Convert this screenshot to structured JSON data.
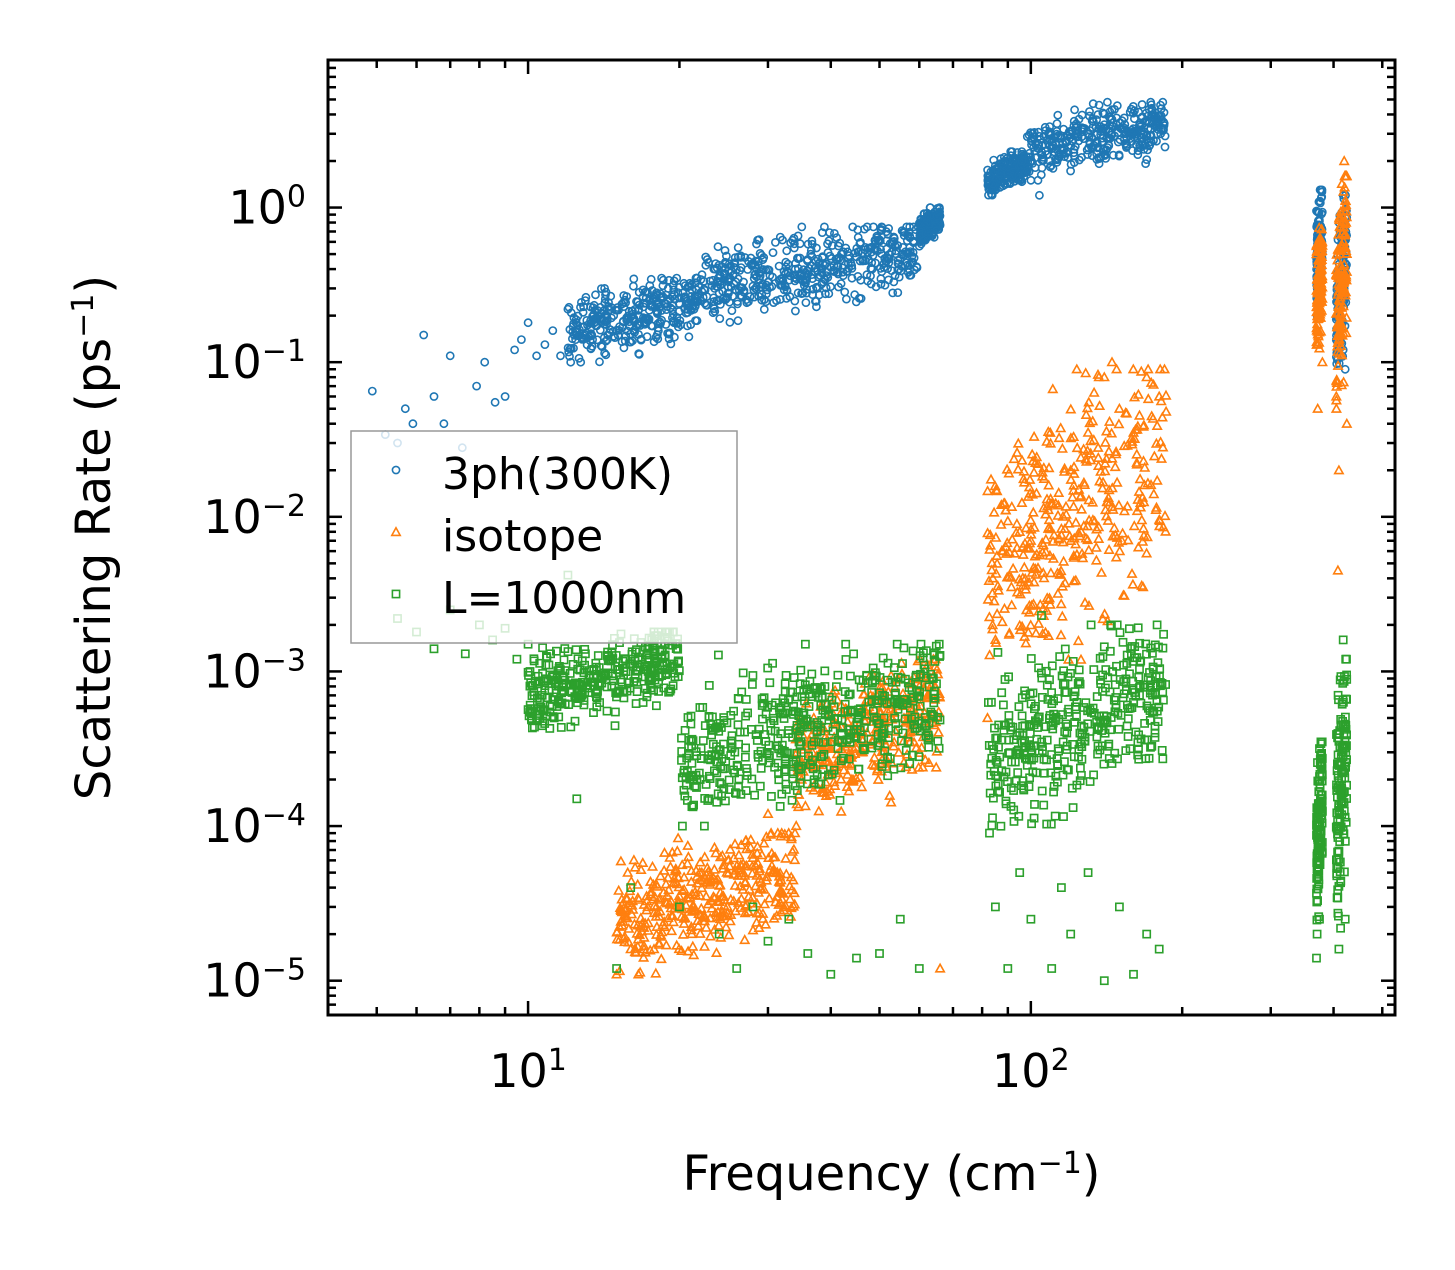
{
  "chart_data": {
    "type": "scatter",
    "title": "",
    "xlabel": "Frequency (cm",
    "xlabel_sup": "−1",
    "xlabel_end": ")",
    "ylabel": "Scattering Rate (ps",
    "ylabel_sup": "−1",
    "ylabel_end": ")",
    "xscale": "log",
    "yscale": "log",
    "xlim": [
      4.0,
      530
    ],
    "ylim": [
      6e-06,
      9.0
    ],
    "x_ticks": [
      {
        "value": 10,
        "base": "10",
        "exp": "1"
      },
      {
        "value": 100,
        "base": "10",
        "exp": "2"
      }
    ],
    "y_ticks": [
      {
        "value": 1,
        "base": "10",
        "exp": "0"
      },
      {
        "value": 0.1,
        "base": "10",
        "exp": "−1"
      },
      {
        "value": 0.01,
        "base": "10",
        "exp": "−2"
      },
      {
        "value": 0.001,
        "base": "10",
        "exp": "−3"
      },
      {
        "value": 0.0001,
        "base": "10",
        "exp": "−4"
      },
      {
        "value": 1e-05,
        "base": "10",
        "exp": "−5"
      }
    ],
    "legend_position": "center-left",
    "series": [
      {
        "name": "3ph(300K)",
        "marker": "circle",
        "color": "#1f77b4",
        "points": [
          [
            4.9,
            0.065
          ],
          [
            5.2,
            0.034
          ],
          [
            5.5,
            0.03
          ],
          [
            5.7,
            0.05
          ],
          [
            5.9,
            0.04
          ],
          [
            6.2,
            0.15
          ],
          [
            6.5,
            0.06
          ],
          [
            6.8,
            0.04
          ],
          [
            7.0,
            0.11
          ],
          [
            7.4,
            0.028
          ],
          [
            7.9,
            0.07
          ],
          [
            8.2,
            0.1
          ],
          [
            8.6,
            0.055
          ],
          [
            9.0,
            0.06
          ],
          [
            9.4,
            0.12
          ],
          [
            9.7,
            0.14
          ],
          [
            10.0,
            0.18
          ],
          [
            10.4,
            0.11
          ],
          [
            10.8,
            0.13
          ],
          [
            11.2,
            0.16
          ],
          [
            11.6,
            0.11
          ],
          [
            12.0,
            0.22
          ],
          [
            12.5,
            0.15
          ],
          [
            13.0,
            0.25
          ],
          [
            13.6,
            0.19
          ],
          [
            14.2,
            0.3
          ],
          [
            14.8,
            0.2
          ],
          [
            15.5,
            0.27
          ],
          [
            16.2,
            0.31
          ],
          [
            17.0,
            0.24
          ],
          [
            18.0,
            0.28
          ],
          [
            19.0,
            0.3
          ],
          [
            20.0,
            0.26
          ],
          [
            21.0,
            0.28
          ],
          [
            22.0,
            0.25
          ],
          [
            23.5,
            0.3
          ],
          [
            25.0,
            0.28
          ],
          [
            26.5,
            0.27
          ],
          [
            28.0,
            0.31
          ],
          [
            30.0,
            0.33
          ],
          [
            32.0,
            0.35
          ],
          [
            34.0,
            0.4
          ],
          [
            36.0,
            0.37
          ],
          [
            38.0,
            0.44
          ],
          [
            40.0,
            0.41
          ],
          [
            42.0,
            0.5
          ],
          [
            45.0,
            0.48
          ],
          [
            48.0,
            0.55
          ],
          [
            50.0,
            0.62
          ],
          [
            53.0,
            0.58
          ],
          [
            56.0,
            0.66
          ],
          [
            59.0,
            0.72
          ],
          [
            62.0,
            0.8
          ],
          [
            65.0,
            0.88
          ],
          [
            85.0,
            1.7
          ],
          [
            88.0,
            1.9
          ],
          [
            92.0,
            1.6
          ],
          [
            96.0,
            2.0
          ],
          [
            100.0,
            1.5
          ],
          [
            104.0,
            1.2
          ],
          [
            108.0,
            2.2
          ],
          [
            112.0,
            2.6
          ],
          [
            118.0,
            2.9
          ],
          [
            124.0,
            3.1
          ],
          [
            130.0,
            3.0
          ],
          [
            136.0,
            4.0
          ],
          [
            142.0,
            4.8
          ],
          [
            148.0,
            3.8
          ],
          [
            154.0,
            2.6
          ],
          [
            160.0,
            3.1
          ],
          [
            166.0,
            2.8
          ],
          [
            172.0,
            2.5
          ],
          [
            178.0,
            3.0
          ],
          [
            184.0,
            3.4
          ],
          [
            370.0,
            0.95
          ],
          [
            375.0,
            0.6
          ],
          [
            378.0,
            0.3
          ],
          [
            410.0,
            0.8
          ],
          [
            415.0,
            0.4
          ],
          [
            418.0,
            0.12
          ],
          [
            420.0,
            0.3
          ],
          [
            422.0,
            0.09
          ]
        ],
        "bands": [
          [
            12,
            22,
            0.1,
            0.35
          ],
          [
            22,
            60,
            0.18,
            0.75
          ],
          [
            60,
            66,
            0.55,
            1.0
          ],
          [
            82,
            98,
            1.2,
            2.3
          ],
          [
            98,
            186,
            1.5,
            4.8
          ],
          [
            370,
            380,
            0.2,
            1.3
          ],
          [
            405,
            425,
            0.08,
            1.2
          ]
        ]
      },
      {
        "name": "isotope",
        "marker": "triangle",
        "color": "#ff7f0e",
        "points": [
          [
            15.0,
            1.1e-05
          ],
          [
            16.0,
            1.6e-05
          ],
          [
            17.0,
            2.2e-05
          ],
          [
            18.0,
            3e-05
          ],
          [
            20.0,
            3.2e-05
          ],
          [
            22.0,
            4.5e-05
          ],
          [
            25.0,
            6e-05
          ],
          [
            30.0,
            0.00012
          ],
          [
            35.0,
            0.0002
          ],
          [
            40.0,
            0.00035
          ],
          [
            50.0,
            0.0005
          ],
          [
            60.0,
            0.0008
          ],
          [
            64.0,
            0.0012
          ],
          [
            66.0,
            1.2e-05
          ],
          [
            82.0,
            0.0005
          ],
          [
            84.0,
            0.004
          ],
          [
            88.0,
            0.006
          ],
          [
            95.0,
            0.008
          ],
          [
            100.0,
            0.007
          ],
          [
            110.0,
            0.012
          ],
          [
            120.0,
            0.02
          ],
          [
            130.0,
            0.035
          ],
          [
            140.0,
            0.08
          ],
          [
            145.0,
            0.1
          ],
          [
            150.0,
            0.05
          ],
          [
            160.0,
            0.035
          ],
          [
            170.0,
            0.08
          ],
          [
            180.0,
            0.06
          ],
          [
            370.0,
            0.5
          ],
          [
            372.0,
            0.05
          ],
          [
            375.0,
            0.25
          ],
          [
            380.0,
            0.1
          ],
          [
            405.0,
            0.06
          ],
          [
            410.0,
            0.02
          ],
          [
            415.0,
            0.3
          ],
          [
            420.0,
            2.0
          ],
          [
            425.0,
            0.04
          ],
          [
            408.0,
            0.0045
          ]
        ],
        "bands": [
          [
            15,
            34,
            1.1e-05,
            9e-05
          ],
          [
            34,
            66,
            0.0001,
            0.0012
          ],
          [
            82,
            186,
            0.0008,
            0.09
          ],
          [
            370,
            380,
            0.1,
            0.8
          ],
          [
            405,
            425,
            0.05,
            1.6
          ]
        ]
      },
      {
        "name": "L=1000nm",
        "marker": "square",
        "color": "#2ca02c",
        "points": [
          [
            5.5,
            0.0022
          ],
          [
            6.0,
            0.0018
          ],
          [
            6.5,
            0.0014
          ],
          [
            7.0,
            0.0025
          ],
          [
            7.5,
            0.0013
          ],
          [
            8.0,
            0.002
          ],
          [
            8.5,
            0.0016
          ],
          [
            9.0,
            0.0019
          ],
          [
            9.5,
            0.0012
          ],
          [
            10.0,
            0.0015
          ],
          [
            11.0,
            0.0011
          ],
          [
            12.0,
            0.0042
          ],
          [
            12.5,
            0.00015
          ],
          [
            13.0,
            0.0013
          ],
          [
            14.0,
            0.0009
          ],
          [
            15.0,
            1.2e-05
          ],
          [
            16.0,
            4e-05
          ],
          [
            18.0,
            0.0006
          ],
          [
            20.0,
            3e-05
          ],
          [
            22.0,
            0.0002
          ],
          [
            24.0,
            2e-05
          ],
          [
            26.0,
            1.2e-05
          ],
          [
            28.0,
            3e-05
          ],
          [
            30.0,
            1.8e-05
          ],
          [
            33.0,
            2.5e-05
          ],
          [
            36.0,
            1.5e-05
          ],
          [
            40.0,
            1.1e-05
          ],
          [
            45.0,
            1.4e-05
          ],
          [
            50.0,
            1.5e-05
          ],
          [
            55.0,
            2.5e-05
          ],
          [
            60.0,
            1.2e-05
          ],
          [
            64.0,
            0.0009
          ],
          [
            85.0,
            3e-05
          ],
          [
            90.0,
            1.2e-05
          ],
          [
            95.0,
            5e-05
          ],
          [
            100.0,
            2.5e-05
          ],
          [
            105.0,
            0.0023
          ],
          [
            110.0,
            1.2e-05
          ],
          [
            115.0,
            4e-05
          ],
          [
            120.0,
            2e-05
          ],
          [
            130.0,
            5e-05
          ],
          [
            140.0,
            1e-05
          ],
          [
            150.0,
            3e-05
          ],
          [
            160.0,
            1.1e-05
          ],
          [
            170.0,
            2e-05
          ],
          [
            180.0,
            1.6e-05
          ],
          [
            370.0,
            1.4e-05
          ],
          [
            375.0,
            2.5e-05
          ],
          [
            410.0,
            1.6e-05
          ],
          [
            418.0,
            0.0016
          ],
          [
            422.0,
            2.5e-05
          ]
        ],
        "bands": [
          [
            10,
            20,
            0.0004,
            0.0018
          ],
          [
            20,
            66,
            0.0001,
            0.0015
          ],
          [
            82,
            186,
            9e-05,
            0.002
          ],
          [
            370,
            380,
            2e-05,
            0.00035
          ],
          [
            405,
            425,
            2e-05,
            0.0012
          ]
        ]
      }
    ]
  }
}
